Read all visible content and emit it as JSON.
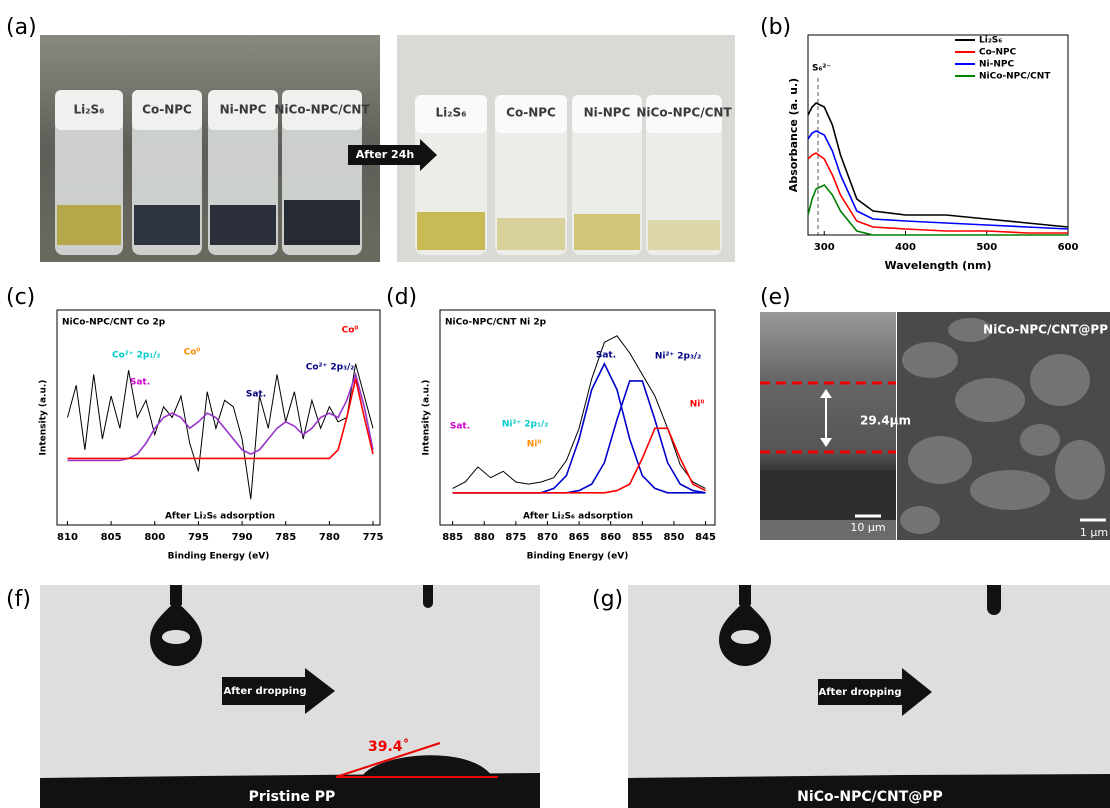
{
  "panel_labels": [
    "(a)",
    "(b)",
    "(c)",
    "(d)",
    "(e)",
    "(f)",
    "(g)"
  ],
  "panel_a": {
    "before_labels": [
      "Li₂S₆",
      "Co-NPC",
      "Ni-NPC",
      "NiCo-NPC/CNT"
    ],
    "after_labels": [
      "Li₂S₆",
      "Co-NPC",
      "Ni-NPC",
      "NiCo-NPC/CNT"
    ],
    "arrow": "After 24h"
  },
  "chart_data": [
    {
      "type": "line",
      "xlabel": "Wavelength (nm)",
      "ylabel": "Absorbance (a. u.)",
      "xlim": [
        280,
        600
      ],
      "ylim": [
        0,
        1
      ],
      "xticks": [
        300,
        400,
        500,
        600
      ],
      "legend": "upper right",
      "x": [
        280,
        285,
        290,
        300,
        310,
        320,
        340,
        360,
        400,
        450,
        500,
        550,
        600
      ],
      "series": [
        {
          "name": "Li₂S₆",
          "color": "#000000",
          "values": [
            0.6,
            0.64,
            0.66,
            0.64,
            0.55,
            0.4,
            0.18,
            0.12,
            0.1,
            0.1,
            0.08,
            0.06,
            0.04
          ]
        },
        {
          "name": "Co-NPC",
          "color": "#ff0000",
          "values": [
            0.38,
            0.4,
            0.41,
            0.38,
            0.3,
            0.2,
            0.07,
            0.04,
            0.03,
            0.02,
            0.02,
            0.01,
            0.01
          ]
        },
        {
          "name": "Ni-NPC",
          "color": "#0000ff",
          "values": [
            0.48,
            0.51,
            0.52,
            0.5,
            0.42,
            0.3,
            0.12,
            0.08,
            0.07,
            0.06,
            0.05,
            0.04,
            0.03
          ]
        },
        {
          "name": "NiCo-NPC/CNT",
          "color": "#008000",
          "values": [
            0.1,
            0.18,
            0.23,
            0.25,
            0.2,
            0.12,
            0.02,
            0,
            0,
            0,
            0,
            0,
            0
          ]
        }
      ],
      "annotations": [
        {
          "text": "S₆²⁻",
          "color": "#000000"
        }
      ]
    },
    {
      "type": "line",
      "title": "NiCo-NPC/CNT Co 2p",
      "xlabel": "Binding Energy (eV)",
      "ylabel": "Intensity (a.u.)",
      "xlim": [
        811.2,
        774.2
      ],
      "ylim": [
        0,
        1
      ],
      "xticks": [
        810,
        805,
        800,
        795,
        790,
        785,
        780,
        775
      ],
      "x": [
        810,
        809,
        808,
        807,
        806,
        805,
        804,
        803,
        802,
        801,
        800,
        799,
        798,
        797,
        796,
        795,
        794,
        793,
        792,
        791,
        790,
        789,
        788,
        787,
        786,
        785,
        784,
        783,
        782,
        781,
        780,
        779,
        778,
        777,
        776,
        775
      ],
      "series": [
        {
          "color": "#000000",
          "values": [
            0.5,
            0.65,
            0.35,
            0.7,
            0.4,
            0.6,
            0.45,
            0.72,
            0.5,
            0.58,
            0.42,
            0.55,
            0.5,
            0.6,
            0.38,
            0.25,
            0.62,
            0.45,
            0.58,
            0.55,
            0.4,
            0.12,
            0.6,
            0.45,
            0.7,
            0.48,
            0.62,
            0.4,
            0.58,
            0.45,
            0.55,
            0.48,
            0.5,
            0.75,
            0.6,
            0.45
          ]
        },
        {
          "color": "#9933cc",
          "values": [
            0.3,
            0.3,
            0.3,
            0.3,
            0.3,
            0.3,
            0.3,
            0.31,
            0.33,
            0.38,
            0.45,
            0.5,
            0.52,
            0.5,
            0.45,
            0.48,
            0.52,
            0.5,
            0.45,
            0.4,
            0.35,
            0.33,
            0.35,
            0.4,
            0.45,
            0.48,
            0.46,
            0.42,
            0.45,
            0.5,
            0.52,
            0.5,
            0.58,
            0.7,
            0.55,
            0.35
          ]
        },
        {
          "color": "#ff0000",
          "values": [
            0.31,
            0.31,
            0.31,
            0.31,
            0.31,
            0.31,
            0.31,
            0.31,
            0.31,
            0.31,
            0.31,
            0.31,
            0.31,
            0.31,
            0.31,
            0.31,
            0.31,
            0.31,
            0.31,
            0.31,
            0.31,
            0.31,
            0.31,
            0.31,
            0.31,
            0.31,
            0.31,
            0.31,
            0.31,
            0.31,
            0.31,
            0.35,
            0.5,
            0.68,
            0.5,
            0.33
          ]
        }
      ],
      "annotations": [
        {
          "text": "Co²⁺ 2p₁/₂",
          "color": "#00cccc"
        },
        {
          "text": "Co⁰",
          "color": "#ff8c00"
        },
        {
          "text": "Sat.",
          "color": "#cc00cc"
        },
        {
          "text": "Sat.",
          "color": "#000080"
        },
        {
          "text": "Co²⁺ 2p₃/₂",
          "color": "#000080"
        },
        {
          "text": "Co⁰",
          "color": "#ff0000"
        },
        {
          "text": "After Li₂S₆ adsorption",
          "color": "#000000"
        }
      ]
    },
    {
      "type": "line",
      "title": "NiCo-NPC/CNT Ni 2p",
      "xlabel": "Binding Energy (eV)",
      "ylabel": "Intensity (a.u.)",
      "xlim": [
        887,
        843.5
      ],
      "ylim": [
        0,
        1
      ],
      "xticks": [
        885,
        880,
        875,
        870,
        865,
        860,
        855,
        850,
        845
      ],
      "x": [
        885,
        883,
        881,
        879,
        877,
        875,
        873,
        871,
        869,
        867,
        865,
        863,
        861,
        859,
        857,
        855,
        853,
        851,
        849,
        847,
        845
      ],
      "series": [
        {
          "color": "#000000",
          "values": [
            0.17,
            0.2,
            0.27,
            0.22,
            0.25,
            0.2,
            0.19,
            0.2,
            0.22,
            0.3,
            0.45,
            0.68,
            0.85,
            0.88,
            0.8,
            0.7,
            0.6,
            0.45,
            0.28,
            0.2,
            0.17
          ]
        },
        {
          "color": "#0000cc",
          "values": [
            0.15,
            0.15,
            0.15,
            0.15,
            0.15,
            0.15,
            0.15,
            0.15,
            0.17,
            0.23,
            0.4,
            0.63,
            0.75,
            0.63,
            0.4,
            0.23,
            0.17,
            0.15,
            0.15,
            0.15,
            0.15
          ]
        },
        {
          "color": "#0000cc",
          "values": [
            0.15,
            0.15,
            0.15,
            0.15,
            0.15,
            0.15,
            0.15,
            0.15,
            0.15,
            0.15,
            0.16,
            0.19,
            0.29,
            0.49,
            0.67,
            0.67,
            0.49,
            0.29,
            0.19,
            0.16,
            0.15
          ]
        },
        {
          "color": "#ff0000",
          "values": [
            0.15,
            0.15,
            0.15,
            0.15,
            0.15,
            0.15,
            0.15,
            0.15,
            0.15,
            0.15,
            0.15,
            0.15,
            0.15,
            0.16,
            0.19,
            0.31,
            0.45,
            0.45,
            0.31,
            0.19,
            0.16
          ]
        }
      ],
      "annotations": [
        {
          "text": "Sat.",
          "color": "#000080"
        },
        {
          "text": "Ni²⁺ 2p₃/₂",
          "color": "#000080"
        },
        {
          "text": "Ni⁰",
          "color": "#ff0000"
        },
        {
          "text": "Sat.",
          "color": "#cc00cc"
        },
        {
          "text": "Ni²⁺ 2p₁/₂",
          "color": "#00cccc"
        },
        {
          "text": "Ni⁰",
          "color": "#ff8c00"
        },
        {
          "text": "After Li₂S₆ adsorption",
          "color": "#000000"
        }
      ]
    }
  ],
  "panel_e": {
    "title": "NiCo-NPC/CNT@PP",
    "thickness": "29.4μm",
    "scale_left": "10 μm",
    "scale_right": "1 μm"
  },
  "panel_f": {
    "arrow": "After dropping",
    "angle": "39.4˚",
    "caption": "Pristine PP"
  },
  "panel_g": {
    "arrow": "After dropping",
    "caption": "NiCo-NPC/CNT@PP"
  }
}
